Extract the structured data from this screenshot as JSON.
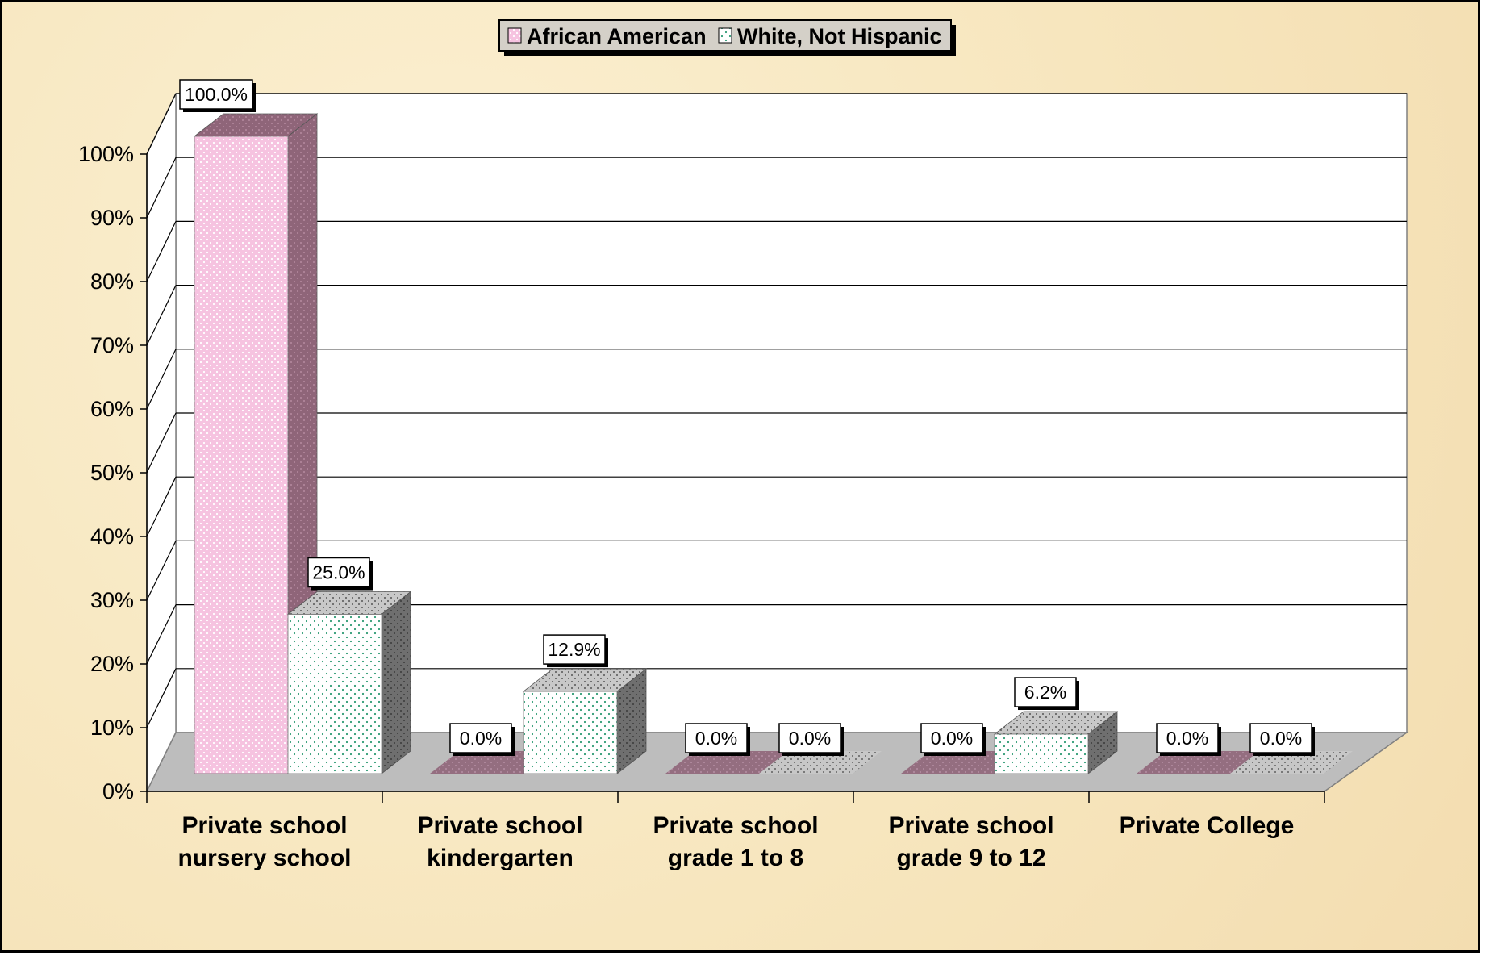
{
  "chart_data": {
    "type": "bar",
    "categories": [
      [
        "Private school",
        "nursery school"
      ],
      [
        "Private school",
        "kindergarten"
      ],
      [
        "Private school",
        "grade 1 to 8"
      ],
      [
        "Private school",
        "grade 9 to 12"
      ],
      [
        "Private College"
      ]
    ],
    "series": [
      {
        "name": "African American",
        "values": [
          100.0,
          0.0,
          0.0,
          0.0,
          0.0
        ],
        "labels": [
          "100.0%",
          "0.0%",
          "0.0%",
          "0.0%",
          "0.0%"
        ],
        "color": "#f6c3e0"
      },
      {
        "name": "White, Not Hispanic",
        "values": [
          25.0,
          12.9,
          0.0,
          6.2,
          0.0
        ],
        "labels": [
          "25.0%",
          "12.9%",
          "0.0%",
          "6.2%",
          "0.0%"
        ],
        "color": "#ffffff"
      }
    ],
    "y_ticks": [
      "0%",
      "10%",
      "20%",
      "30%",
      "40%",
      "50%",
      "60%",
      "70%",
      "80%",
      "90%",
      "100%"
    ],
    "ylim": [
      0,
      100
    ],
    "grid": true,
    "legend": "top-center",
    "style": "3d-clustered-column"
  },
  "colors": {
    "background": "#f7e6be",
    "african_american_front": "#f6c3e0",
    "african_american_side": "#8f6579",
    "white_front": "#ffffff",
    "white_side": "#6f6f6f",
    "floor": "#bdbdbd"
  }
}
